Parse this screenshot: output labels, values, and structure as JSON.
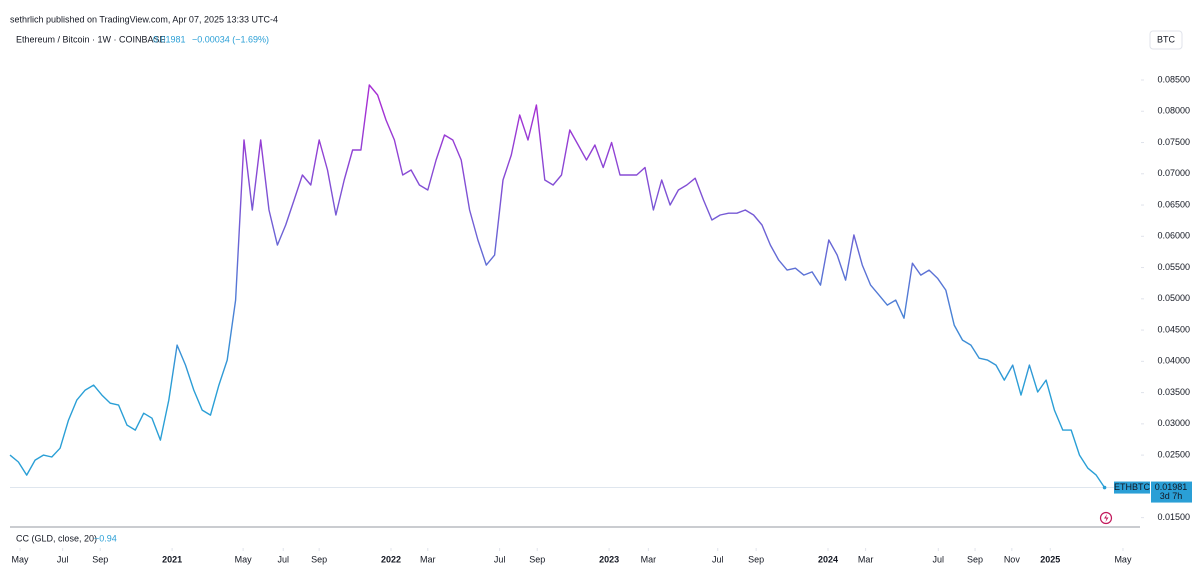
{
  "header": {
    "byline": "sethrlich published on TradingView.com, Apr 07, 2025 13:33 UTC-4",
    "symbol": "Ethereum / Bitcoin · 1W · COINBASE",
    "price": "0.01981",
    "change": "−0.00034 (−1.69%)",
    "currency": "BTC"
  },
  "chart_data": {
    "type": "line",
    "series": [
      {
        "name": "ETHBTC",
        "color": "#2a9fd6",
        "gradient_top": "#a62fd4",
        "values": [
          0.025,
          0.0239,
          0.0218,
          0.0242,
          0.025,
          0.0247,
          0.0261,
          0.0306,
          0.0338,
          0.0354,
          0.0362,
          0.0346,
          0.0333,
          0.033,
          0.0298,
          0.029,
          0.0317,
          0.0309,
          0.0274,
          0.0338,
          0.0426,
          0.0394,
          0.0354,
          0.0322,
          0.0314,
          0.0362,
          0.0402,
          0.0498,
          0.0754,
          0.0642,
          0.0754,
          0.0642,
          0.0586,
          0.0618,
          0.0658,
          0.0698,
          0.0682,
          0.0754,
          0.0706,
          0.0634,
          0.069,
          0.0738,
          0.0738,
          0.0842,
          0.0826,
          0.0786,
          0.0754,
          0.0698,
          0.0706,
          0.0682,
          0.0674,
          0.0722,
          0.0762,
          0.0754,
          0.0722,
          0.0642,
          0.0594,
          0.0554,
          0.057,
          0.069,
          0.073,
          0.0794,
          0.0754,
          0.081,
          0.069,
          0.0682,
          0.0698,
          0.077,
          0.0746,
          0.0722,
          0.0746,
          0.071,
          0.075,
          0.0698,
          0.0698,
          0.0698,
          0.071,
          0.0642,
          0.069,
          0.065,
          0.0674,
          0.0682,
          0.0693,
          0.0658,
          0.0626,
          0.0634,
          0.0637,
          0.0637,
          0.0642,
          0.0634,
          0.0618,
          0.0586,
          0.0562,
          0.0546,
          0.0549,
          0.0538,
          0.0543,
          0.0522,
          0.0594,
          0.057,
          0.053,
          0.0602,
          0.0554,
          0.0522,
          0.0506,
          0.049,
          0.0498,
          0.0469,
          0.0557,
          0.0538,
          0.0546,
          0.0533,
          0.0514,
          0.0458,
          0.0434,
          0.0426,
          0.0405,
          0.0402,
          0.0394,
          0.037,
          0.0394,
          0.0346,
          0.0394,
          0.0351,
          0.037,
          0.0322,
          0.029,
          0.029,
          0.025,
          0.0229,
          0.0218,
          0.01981
        ]
      }
    ],
    "last_tag": "ETHBTC",
    "last_value_label": "0.01981",
    "countdown": "3d 7h",
    "xlim": [
      0,
      135
    ],
    "xticks": [
      {
        "value": 1.2,
        "label": "May"
      },
      {
        "value": 6.3,
        "label": "Jul"
      },
      {
        "value": 10.8,
        "label": "Sep"
      },
      {
        "value": 19.4,
        "label": "2021"
      },
      {
        "value": 27.9,
        "label": "May"
      },
      {
        "value": 32.7,
        "label": "Jul"
      },
      {
        "value": 37.0,
        "label": "Sep"
      },
      {
        "value": 45.6,
        "label": "2022"
      },
      {
        "value": 50.0,
        "label": "Mar"
      },
      {
        "value": 58.6,
        "label": "Jul"
      },
      {
        "value": 63.1,
        "label": "Sep"
      },
      {
        "value": 71.7,
        "label": "2023"
      },
      {
        "value": 76.4,
        "label": "Mar"
      },
      {
        "value": 84.7,
        "label": "Jul"
      },
      {
        "value": 89.3,
        "label": "Sep"
      },
      {
        "value": 97.9,
        "label": "2024"
      },
      {
        "value": 102.4,
        "label": "Mar"
      },
      {
        "value": 111.1,
        "label": "Jul"
      },
      {
        "value": 115.5,
        "label": "Sep"
      },
      {
        "value": 119.9,
        "label": "Nov"
      },
      {
        "value": 124.5,
        "label": "2025"
      },
      {
        "value": 133.2,
        "label": "May"
      }
    ],
    "ylim": [
      0.0135,
      0.0898
    ],
    "yticks": [
      {
        "value": 0.015,
        "label": "0.01500"
      },
      {
        "value": 0.025,
        "label": "0.02500"
      },
      {
        "value": 0.03,
        "label": "0.03000"
      },
      {
        "value": 0.035,
        "label": "0.03500"
      },
      {
        "value": 0.04,
        "label": "0.04000"
      },
      {
        "value": 0.045,
        "label": "0.04500"
      },
      {
        "value": 0.05,
        "label": "0.05000"
      },
      {
        "value": 0.055,
        "label": "0.05500"
      },
      {
        "value": 0.06,
        "label": "0.06000"
      },
      {
        "value": 0.065,
        "label": "0.06500"
      },
      {
        "value": 0.07,
        "label": "0.07000"
      },
      {
        "value": 0.075,
        "label": "0.07500"
      },
      {
        "value": 0.08,
        "label": "0.08000"
      },
      {
        "value": 0.085,
        "label": "0.08500"
      }
    ]
  },
  "indicator": {
    "name": "CC (GLD, close, 20)",
    "value": "−0.94"
  }
}
